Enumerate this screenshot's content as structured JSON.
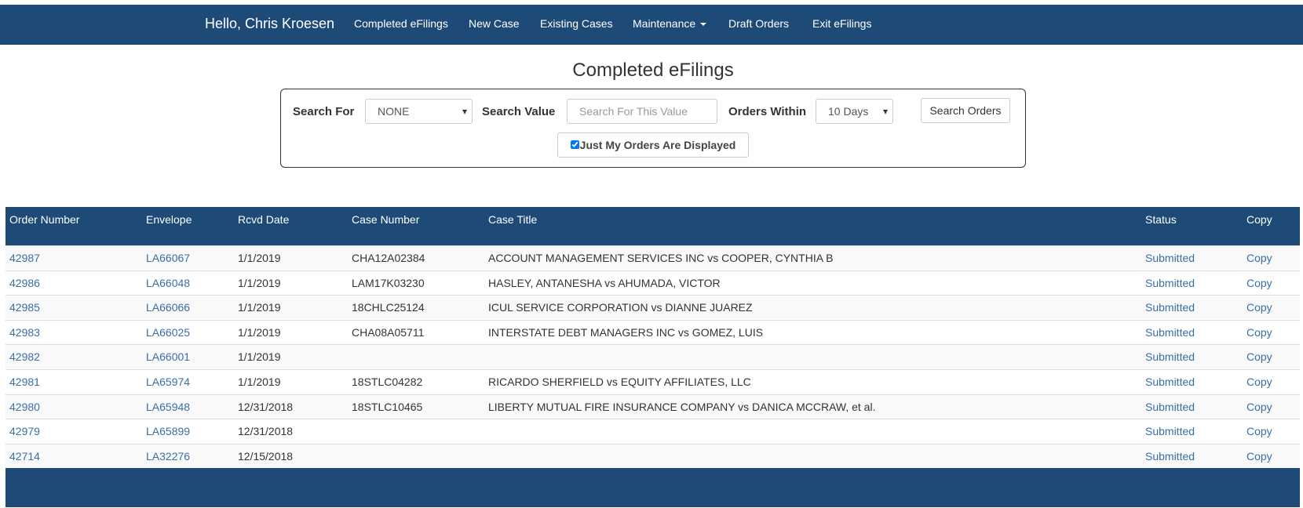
{
  "nav": {
    "greeting": "Hello, Chris Kroesen",
    "items": [
      "Completed eFilings",
      "New Case",
      "Existing Cases",
      "Maintenance",
      "Draft Orders",
      "Exit eFilings"
    ]
  },
  "page": {
    "title": "Completed eFilings"
  },
  "search": {
    "search_for_label": "Search For",
    "search_for_value": "NONE",
    "search_value_label": "Search Value",
    "search_value_placeholder": "Search For This Value",
    "orders_within_label": "Orders Within",
    "orders_within_value": "10 Days",
    "button": "Search Orders",
    "checkbox_label": "Just My Orders Are Displayed"
  },
  "table": {
    "headers": [
      "Order Number",
      "Envelope",
      "Rcvd Date",
      "Case Number",
      "Case Title",
      "Status",
      "Copy"
    ],
    "rows": [
      [
        "42987",
        "LA66067",
        "1/1/2019",
        "CHA12A02384",
        "ACCOUNT MANAGEMENT SERVICES INC vs COOPER, CYNTHIA B",
        "Submitted",
        "Copy"
      ],
      [
        "42986",
        "LA66048",
        "1/1/2019",
        "LAM17K03230",
        "HASLEY, ANTANESHA vs AHUMADA, VICTOR",
        "Submitted",
        "Copy"
      ],
      [
        "42985",
        "LA66066",
        "1/1/2019",
        "18CHLC25124",
        "ICUL SERVICE CORPORATION vs DIANNE JUAREZ",
        "Submitted",
        "Copy"
      ],
      [
        "42983",
        "LA66025",
        "1/1/2019",
        "CHA08A05711",
        "INTERSTATE DEBT MANAGERS INC vs GOMEZ, LUIS",
        "Submitted",
        "Copy"
      ],
      [
        "42982",
        "LA66001",
        "1/1/2019",
        null,
        null,
        "Submitted",
        "Copy"
      ],
      [
        "42981",
        "LA65974",
        "1/1/2019",
        "18STLC04282",
        "RICARDO SHERFIELD vs EQUITY AFFILIATES, LLC",
        "Submitted",
        "Copy"
      ],
      [
        "42980",
        "LA65948",
        "12/31/2018",
        "18STLC10465",
        "LIBERTY MUTUAL FIRE INSURANCE COMPANY vs DANICA MCCRAW, et al.",
        "Submitted",
        "Copy"
      ],
      [
        "42979",
        "LA65899",
        "12/31/2018",
        null,
        null,
        "Submitted",
        "Copy"
      ],
      [
        "42714",
        "LA32276",
        "12/15/2018",
        null,
        null,
        "Submitted",
        "Copy"
      ]
    ]
  }
}
